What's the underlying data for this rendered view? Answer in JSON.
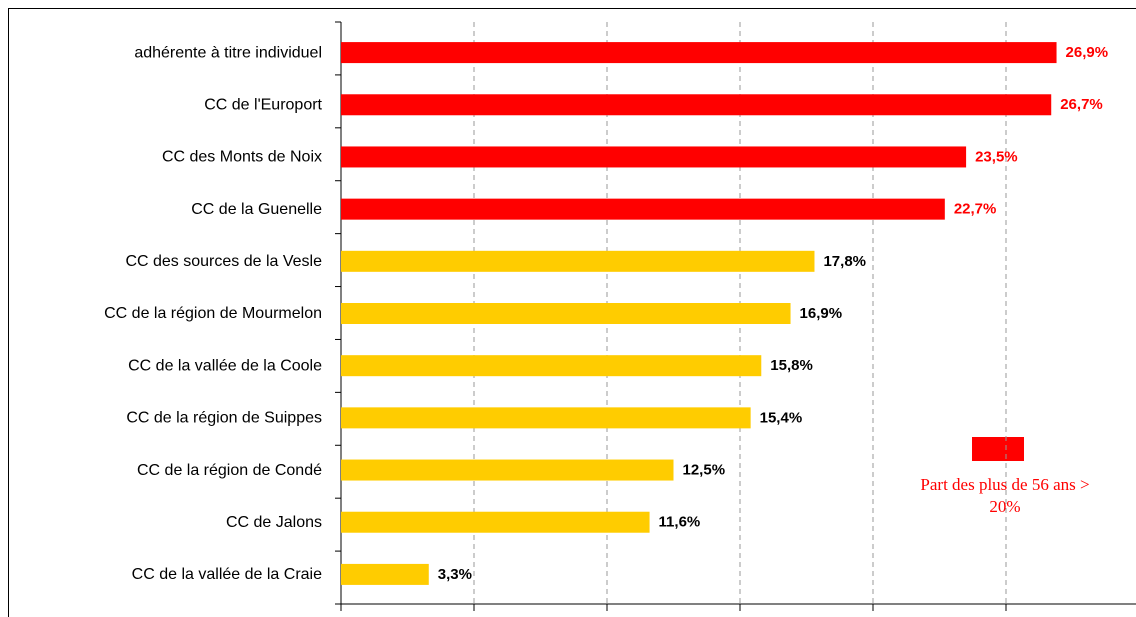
{
  "chart_data": {
    "type": "bar",
    "orientation": "horizontal",
    "categories": [
      "adhérente à titre individuel",
      "CC de l'Europort",
      "CC des Monts de Noix",
      "CC de la Guenelle",
      "CC des sources de la Vesle",
      "CC de la région de Mourmelon",
      "CC de la vallée de la Coole",
      "CC de la région de Suippes",
      "CC de la région de Condé",
      "CC de Jalons",
      "CC de la vallée de la Craie"
    ],
    "values": [
      26.9,
      26.7,
      23.5,
      22.7,
      17.8,
      16.9,
      15.8,
      15.4,
      12.5,
      11.6,
      3.3
    ],
    "value_labels": [
      "26,9%",
      "26,7%",
      "23,5%",
      "22,7%",
      "17,8%",
      "16,9%",
      "15,8%",
      "15,4%",
      "12,5%",
      "11,6%",
      "3,3%"
    ],
    "colors": [
      "#ff0000",
      "#ff0000",
      "#ff0000",
      "#ff0000",
      "#ffcc00",
      "#ffcc00",
      "#ffcc00",
      "#ffcc00",
      "#ffcc00",
      "#ffcc00",
      "#ffcc00"
    ],
    "xlim": [
      0,
      30
    ],
    "xticks": [
      0,
      5,
      10,
      15,
      20,
      25,
      30
    ],
    "grid": true,
    "legend": {
      "name": "Part des plus de 56 ans > 20%",
      "color": "#ff0000"
    }
  }
}
